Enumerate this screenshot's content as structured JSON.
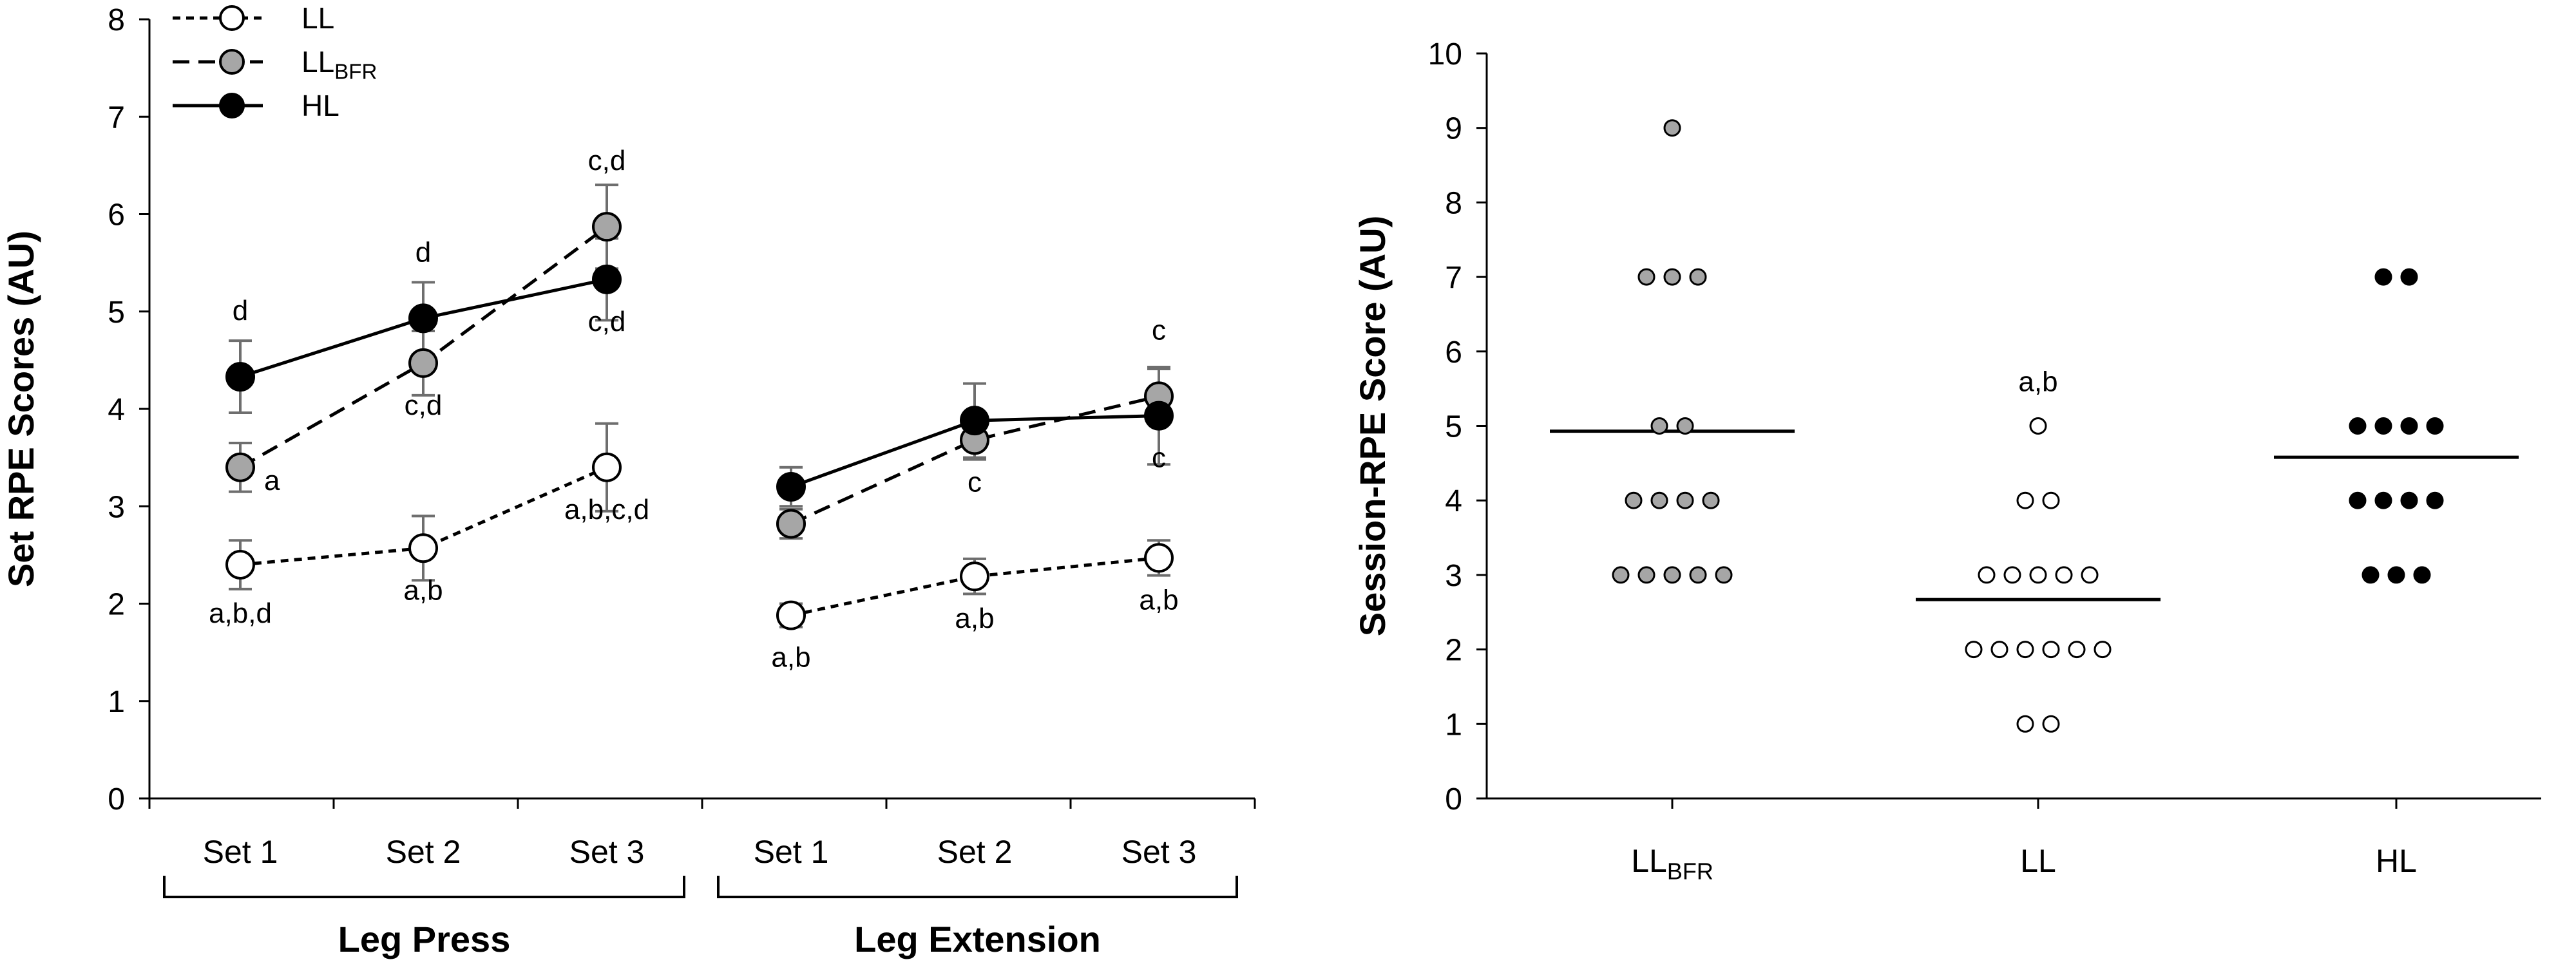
{
  "chart_data": [
    {
      "type": "line",
      "ylabel": "Set RPE Scores (AU)",
      "ylim": [
        0,
        8
      ],
      "yticks": [
        "0",
        "1",
        "2",
        "3",
        "4",
        "5",
        "6",
        "7",
        "8"
      ],
      "grid": false,
      "legend": [
        {
          "name": "LL",
          "sub": "",
          "marker": "open",
          "dash": "short"
        },
        {
          "name": "LL",
          "sub": "BFR",
          "marker": "gray",
          "dash": "long"
        },
        {
          "name": "HL",
          "sub": "",
          "marker": "black",
          "dash": "solid"
        }
      ],
      "groups": [
        {
          "label": "Leg Press",
          "categories": [
            "Set 1",
            "Set 2",
            "Set 3"
          ]
        },
        {
          "label": "Leg Extension",
          "categories": [
            "Set 1",
            "Set 2",
            "Set 3"
          ]
        }
      ],
      "series": [
        {
          "name": "LL",
          "marker": "open",
          "dash": "short",
          "values": [
            [
              2.4,
              2.57,
              3.4
            ],
            [
              1.88,
              2.28,
              2.47
            ]
          ],
          "err": [
            [
              0.25,
              0.33,
              0.45
            ],
            [
              0.12,
              0.18,
              0.18
            ]
          ],
          "annotations": [
            [
              "a,b,d",
              "a,b",
              "a,b,c,d"
            ],
            [
              "a,b",
              "a,b",
              "a,b"
            ]
          ],
          "ann_pos": [
            [
              "below",
              "below",
              "below"
            ],
            [
              "below",
              "below",
              "below"
            ]
          ]
        },
        {
          "name": "LLBFR",
          "marker": "gray",
          "dash": "long",
          "values": [
            [
              3.4,
              4.47,
              5.87
            ],
            [
              2.82,
              3.68,
              4.13
            ]
          ],
          "err": [
            [
              0.25,
              0.33,
              0.43
            ],
            [
              0.15,
              0.2,
              0.28
            ]
          ],
          "annotations": [
            [
              "a",
              "c,d",
              "c,d"
            ],
            [
              "",
              "c",
              "c"
            ]
          ],
          "ann_pos": [
            [
              "right",
              "below",
              "above"
            ],
            [
              "",
              "below",
              "above"
            ]
          ]
        },
        {
          "name": "HL",
          "marker": "black",
          "dash": "solid",
          "values": [
            [
              4.33,
              4.93,
              5.33
            ],
            [
              3.2,
              3.88,
              3.93
            ]
          ],
          "err": [
            [
              0.37,
              0.37,
              0.42
            ],
            [
              0.2,
              0.38,
              0.5
            ]
          ],
          "annotations": [
            [
              "d",
              "d",
              "c,d"
            ],
            [
              "",
              "",
              "c"
            ]
          ],
          "ann_pos": [
            [
              "above",
              "above",
              "below"
            ],
            [
              "",
              "",
              "below"
            ]
          ]
        }
      ]
    },
    {
      "type": "scatter",
      "ylabel": "Session-RPE Score (AU)",
      "ylim": [
        0,
        10
      ],
      "yticks": [
        "0",
        "1",
        "2",
        "3",
        "4",
        "5",
        "6",
        "7",
        "8",
        "9",
        "10"
      ],
      "grid": false,
      "categories": [
        {
          "name": "LL",
          "sub": "BFR"
        },
        {
          "name": "LL",
          "sub": ""
        },
        {
          "name": "HL",
          "sub": ""
        }
      ],
      "series": [
        {
          "name": "LLBFR",
          "marker": "gray",
          "mean": 4.93,
          "points": [
            {
              "y": 9,
              "n": 1
            },
            {
              "y": 7,
              "n": 3
            },
            {
              "y": 5,
              "n": 2
            },
            {
              "y": 4,
              "n": 4
            },
            {
              "y": 3,
              "n": 5
            }
          ],
          "annotation": ""
        },
        {
          "name": "LL",
          "marker": "open",
          "mean": 2.67,
          "points": [
            {
              "y": 5,
              "n": 1
            },
            {
              "y": 4,
              "n": 2
            },
            {
              "y": 3,
              "n": 5
            },
            {
              "y": 2,
              "n": 6
            },
            {
              "y": 1,
              "n": 2
            }
          ],
          "annotation": "a,b"
        },
        {
          "name": "HL",
          "marker": "black",
          "mean": 4.58,
          "points": [
            {
              "y": 7,
              "n": 2
            },
            {
              "y": 5,
              "n": 4
            },
            {
              "y": 4,
              "n": 4
            },
            {
              "y": 3,
              "n": 3
            }
          ],
          "annotation": ""
        }
      ]
    }
  ]
}
